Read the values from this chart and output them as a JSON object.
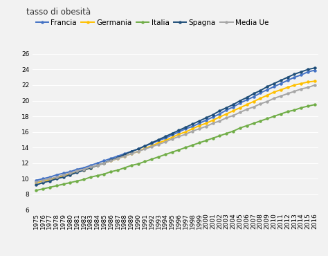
{
  "title": "tasso di obesità",
  "ylim": [
    6,
    27
  ],
  "yticks": [
    6,
    8,
    10,
    12,
    14,
    16,
    18,
    20,
    22,
    24,
    26
  ],
  "years": [
    1975,
    1976,
    1977,
    1978,
    1979,
    1980,
    1981,
    1982,
    1983,
    1984,
    1985,
    1986,
    1987,
    1988,
    1989,
    1990,
    1991,
    1992,
    1993,
    1994,
    1995,
    1996,
    1997,
    1998,
    1999,
    2000,
    2001,
    2002,
    2003,
    2004,
    2005,
    2006,
    2007,
    2008,
    2009,
    2010,
    2011,
    2012,
    2013,
    2014,
    2015,
    2016
  ],
  "series": [
    {
      "name": "Francia",
      "color": "#4472C4",
      "values": [
        9.8,
        10.0,
        10.2,
        10.5,
        10.7,
        10.9,
        11.2,
        11.4,
        11.7,
        12.0,
        12.3,
        12.6,
        12.9,
        13.2,
        13.5,
        13.8,
        14.2,
        14.5,
        14.9,
        15.2,
        15.6,
        16.0,
        16.4,
        16.7,
        17.1,
        17.5,
        17.9,
        18.3,
        18.8,
        19.2,
        19.7,
        20.1,
        20.5,
        21.0,
        21.4,
        21.8,
        22.2,
        22.6,
        23.0,
        23.3,
        23.7,
        23.9
      ]
    },
    {
      "name": "Germania",
      "color": "#FFC000",
      "values": [
        9.5,
        9.7,
        9.9,
        10.1,
        10.4,
        10.6,
        10.9,
        11.1,
        11.4,
        11.7,
        12.0,
        12.3,
        12.6,
        12.9,
        13.2,
        13.5,
        13.9,
        14.2,
        14.6,
        14.9,
        15.3,
        15.7,
        16.0,
        16.4,
        16.8,
        17.1,
        17.5,
        17.9,
        18.3,
        18.7,
        19.1,
        19.5,
        19.9,
        20.3,
        20.7,
        21.1,
        21.4,
        21.7,
        22.0,
        22.2,
        22.4,
        22.5
      ]
    },
    {
      "name": "Italia",
      "color": "#70AD47",
      "values": [
        8.5,
        8.7,
        8.9,
        9.1,
        9.3,
        9.5,
        9.7,
        9.9,
        10.2,
        10.4,
        10.6,
        10.9,
        11.1,
        11.4,
        11.7,
        11.9,
        12.2,
        12.5,
        12.8,
        13.1,
        13.4,
        13.7,
        14.0,
        14.3,
        14.6,
        14.9,
        15.2,
        15.5,
        15.8,
        16.1,
        16.5,
        16.8,
        17.1,
        17.4,
        17.7,
        18.0,
        18.3,
        18.6,
        18.8,
        19.1,
        19.3,
        19.5
      ]
    },
    {
      "name": "Spagna",
      "color": "#1F4E79",
      "values": [
        9.2,
        9.5,
        9.7,
        10.0,
        10.2,
        10.5,
        10.8,
        11.1,
        11.4,
        11.7,
        12.0,
        12.4,
        12.7,
        13.1,
        13.5,
        13.8,
        14.2,
        14.6,
        15.0,
        15.4,
        15.8,
        16.2,
        16.6,
        17.0,
        17.4,
        17.8,
        18.2,
        18.7,
        19.1,
        19.5,
        20.0,
        20.4,
        20.9,
        21.3,
        21.8,
        22.2,
        22.6,
        23.0,
        23.4,
        23.7,
        24.0,
        24.2
      ]
    },
    {
      "name": "Media Ue",
      "color": "#A6A6A6",
      "values": [
        9.6,
        9.8,
        10.0,
        10.2,
        10.5,
        10.7,
        11.0,
        11.2,
        11.5,
        11.7,
        12.0,
        12.3,
        12.6,
        12.9,
        13.2,
        13.5,
        13.8,
        14.1,
        14.4,
        14.7,
        15.1,
        15.4,
        15.7,
        16.1,
        16.4,
        16.7,
        17.1,
        17.4,
        17.8,
        18.1,
        18.5,
        18.9,
        19.2,
        19.6,
        19.9,
        20.3,
        20.6,
        20.9,
        21.2,
        21.5,
        21.7,
        22.0
      ]
    }
  ],
  "background_color": "#F2F2F2",
  "grid_color": "#FFFFFF",
  "marker": "o",
  "marker_size": 2.2,
  "line_width": 1.4,
  "title_fontsize": 8.5,
  "legend_fontsize": 7.5,
  "tick_fontsize": 6.5
}
